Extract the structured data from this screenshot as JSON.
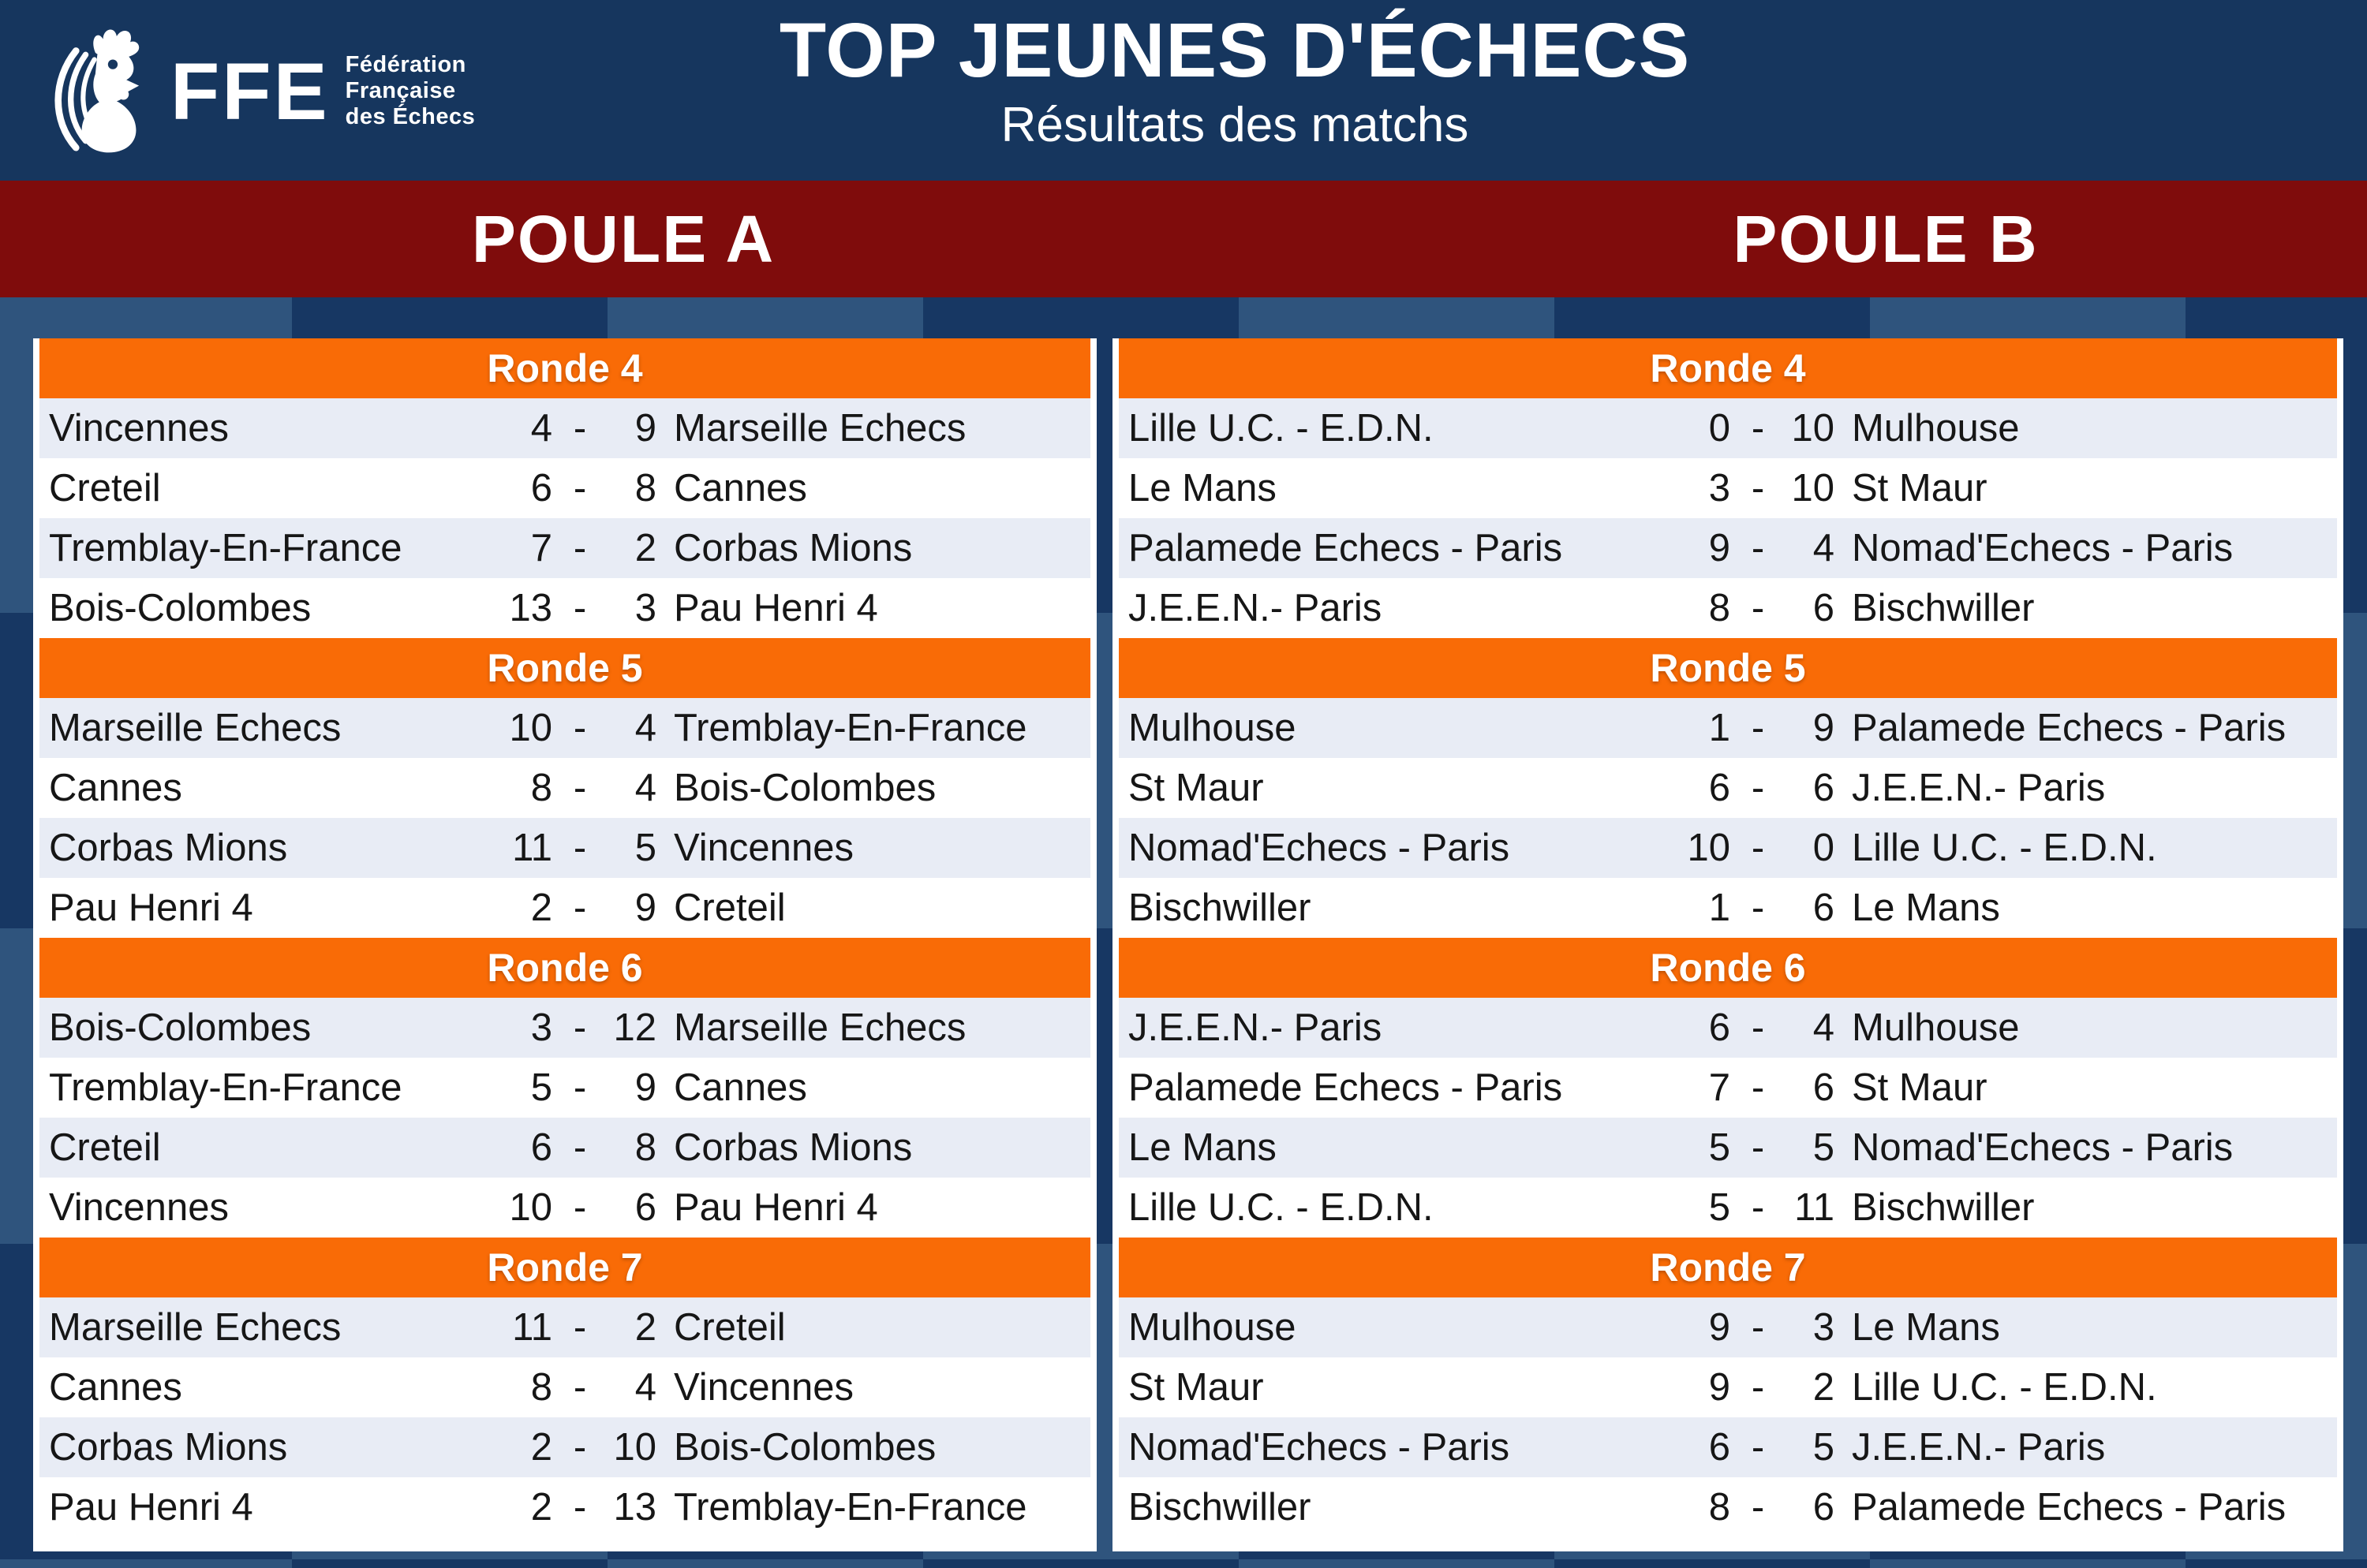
{
  "header": {
    "logo_acronym": "FFE",
    "logo_org_line1": "Fédération",
    "logo_org_line2": "Française",
    "logo_org_line3": "des Échecs",
    "title": "TOP JEUNES D'ÉCHECS",
    "subtitle": "Résultats des matchs"
  },
  "score_separator": "-",
  "pools": [
    {
      "name": "POULE A",
      "rounds": [
        {
          "label": "Ronde 4",
          "matches": [
            {
              "home": "Vincennes",
              "score_home": "4",
              "score_away": "9",
              "away": "Marseille Echecs"
            },
            {
              "home": "Creteil",
              "score_home": "6",
              "score_away": "8",
              "away": "Cannes"
            },
            {
              "home": "Tremblay-En-France",
              "score_home": "7",
              "score_away": "2",
              "away": "Corbas Mions"
            },
            {
              "home": "Bois-Colombes",
              "score_home": "13",
              "score_away": "3",
              "away": "Pau Henri 4"
            }
          ]
        },
        {
          "label": "Ronde 5",
          "matches": [
            {
              "home": "Marseille Echecs",
              "score_home": "10",
              "score_away": "4",
              "away": "Tremblay-En-France"
            },
            {
              "home": "Cannes",
              "score_home": "8",
              "score_away": "4",
              "away": "Bois-Colombes"
            },
            {
              "home": "Corbas Mions",
              "score_home": "11",
              "score_away": "5",
              "away": "Vincennes"
            },
            {
              "home": "Pau Henri 4",
              "score_home": "2",
              "score_away": "9",
              "away": "Creteil"
            }
          ]
        },
        {
          "label": "Ronde 6",
          "matches": [
            {
              "home": "Bois-Colombes",
              "score_home": "3",
              "score_away": "12",
              "away": "Marseille Echecs"
            },
            {
              "home": "Tremblay-En-France",
              "score_home": "5",
              "score_away": "9",
              "away": "Cannes"
            },
            {
              "home": "Creteil",
              "score_home": "6",
              "score_away": "8",
              "away": "Corbas Mions"
            },
            {
              "home": "Vincennes",
              "score_home": "10",
              "score_away": "6",
              "away": "Pau Henri 4"
            }
          ]
        },
        {
          "label": "Ronde 7",
          "matches": [
            {
              "home": "Marseille Echecs",
              "score_home": "11",
              "score_away": "2",
              "away": "Creteil"
            },
            {
              "home": "Cannes",
              "score_home": "8",
              "score_away": "4",
              "away": "Vincennes"
            },
            {
              "home": "Corbas Mions",
              "score_home": "2",
              "score_away": "10",
              "away": "Bois-Colombes"
            },
            {
              "home": "Pau Henri 4",
              "score_home": "2",
              "score_away": "13",
              "away": "Tremblay-En-France"
            }
          ]
        }
      ]
    },
    {
      "name": "POULE B",
      "rounds": [
        {
          "label": "Ronde 4",
          "matches": [
            {
              "home": "Lille U.C. - E.D.N.",
              "score_home": "0",
              "score_away": "10",
              "away": "Mulhouse"
            },
            {
              "home": "Le Mans",
              "score_home": "3",
              "score_away": "10",
              "away": "St Maur"
            },
            {
              "home": "Palamede Echecs - Paris",
              "score_home": "9",
              "score_away": "4",
              "away": "Nomad'Echecs - Paris"
            },
            {
              "home": "J.E.E.N.- Paris",
              "score_home": "8",
              "score_away": "6",
              "away": "Bischwiller"
            }
          ]
        },
        {
          "label": "Ronde 5",
          "matches": [
            {
              "home": "Mulhouse",
              "score_home": "1",
              "score_away": "9",
              "away": "Palamede Echecs - Paris"
            },
            {
              "home": "St Maur",
              "score_home": "6",
              "score_away": "6",
              "away": "J.E.E.N.- Paris"
            },
            {
              "home": "Nomad'Echecs - Paris",
              "score_home": "10",
              "score_away": "0",
              "away": "Lille U.C. - E.D.N."
            },
            {
              "home": "Bischwiller",
              "score_home": "1",
              "score_away": "6",
              "away": "Le Mans"
            }
          ]
        },
        {
          "label": "Ronde 6",
          "matches": [
            {
              "home": "J.E.E.N.- Paris",
              "score_home": "6",
              "score_away": "4",
              "away": "Mulhouse"
            },
            {
              "home": "Palamede Echecs - Paris",
              "score_home": "7",
              "score_away": "6",
              "away": "St Maur"
            },
            {
              "home": "Le Mans",
              "score_home": "5",
              "score_away": "5",
              "away": "Nomad'Echecs - Paris"
            },
            {
              "home": "Lille U.C. - E.D.N.",
              "score_home": "5",
              "score_away": "11",
              "away": "Bischwiller"
            }
          ]
        },
        {
          "label": "Ronde 7",
          "matches": [
            {
              "home": "Mulhouse",
              "score_home": "9",
              "score_away": "3",
              "away": "Le Mans"
            },
            {
              "home": "St Maur",
              "score_home": "9",
              "score_away": "2",
              "away": "Lille U.C. - E.D.N."
            },
            {
              "home": "Nomad'Echecs - Paris",
              "score_home": "6",
              "score_away": "5",
              "away": "J.E.E.N.- Paris"
            },
            {
              "home": "Bischwiller",
              "score_home": "8",
              "score_away": "6",
              "away": "Palamede Echecs - Paris"
            }
          ]
        }
      ]
    }
  ],
  "colors": {
    "header_navy": "#16365e",
    "banner_red": "#7f0c0c",
    "round_orange": "#f96b06",
    "checker_dark": "#173763",
    "checker_light": "#2f547d",
    "row_alt": "#e8ecf5",
    "row_text": "#161616"
  }
}
